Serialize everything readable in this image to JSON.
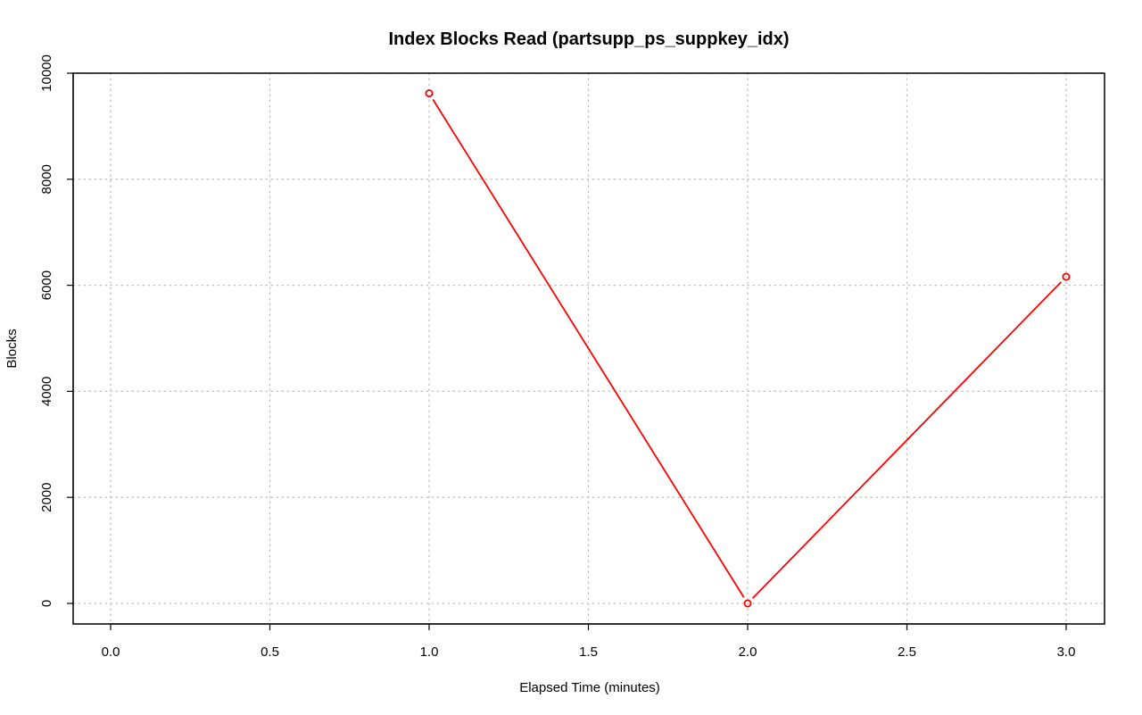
{
  "chart_data": {
    "type": "line",
    "title": "Index Blocks Read (partsupp_ps_suppkey_idx)",
    "xlabel": "Elapsed Time (minutes)",
    "ylabel": "Blocks",
    "xlim": [
      0.0,
      3.0
    ],
    "ylim": [
      0,
      10000
    ],
    "x_ticks": [
      "0.0",
      "0.5",
      "1.0",
      "1.5",
      "2.0",
      "2.5",
      "3.0"
    ],
    "y_ticks": [
      "0",
      "2000",
      "4000",
      "6000",
      "8000",
      "10000"
    ],
    "grid": true,
    "legend": "none",
    "series": [
      {
        "color": "#ff0000",
        "marker": "open-circle",
        "x": [
          1.0,
          2.0,
          3.0
        ],
        "y": [
          9620,
          0,
          6160
        ]
      }
    ]
  }
}
